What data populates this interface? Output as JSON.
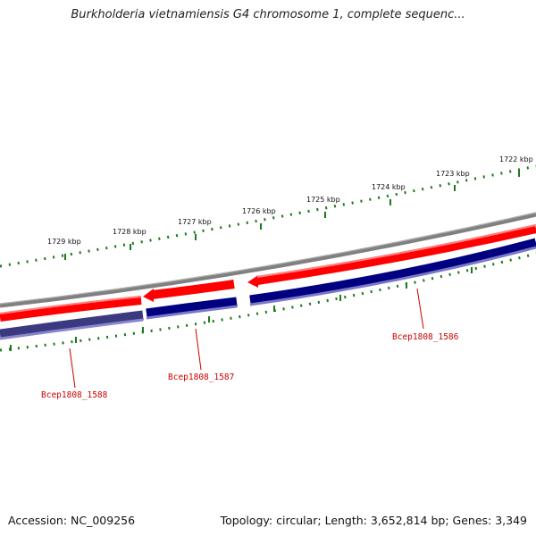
{
  "title": "Burkholderia vietnamiensis G4 chromosome 1, complete sequenc...",
  "ticks": [
    "1729 kbp",
    "1728 kbp",
    "1727 kbp",
    "1726 kbp",
    "1725 kbp",
    "1724 kbp",
    "1723 kbp",
    "1722 kbp"
  ],
  "genes": [
    "Bcep1808_1588",
    "Bcep1808_1587",
    "Bcep1808_1586"
  ],
  "footer": {
    "accession": "Accession: NC_009256",
    "info": "Topology: circular; Length: 3,652,814 bp; Genes: 3,349"
  },
  "colors": {
    "backbone": "#808080",
    "forward_strand": "#ff0000",
    "reverse_strand": "#000080",
    "ticks": "#1a7a1a",
    "gene_labels": "#cc0000"
  }
}
